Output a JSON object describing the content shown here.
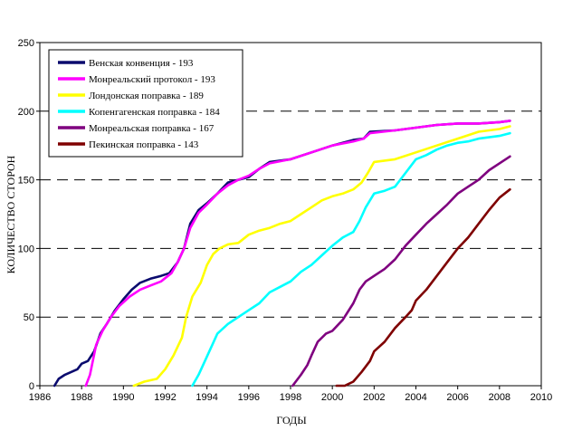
{
  "chart_data": {
    "type": "line",
    "title": "",
    "xlabel": "ГОДЫ",
    "ylabel": "КОЛИЧЕСТВО СТОРОН",
    "xlim": [
      1986,
      2010
    ],
    "ylim": [
      0,
      250
    ],
    "x_ticks": [
      1986,
      1988,
      1990,
      1992,
      1994,
      1996,
      1998,
      2000,
      2002,
      2004,
      2006,
      2008,
      2010
    ],
    "y_ticks": [
      0,
      50,
      100,
      150,
      200,
      250
    ],
    "grid": "dashed",
    "legend": "top-left",
    "series": [
      {
        "name": "Венская конвенция - 193",
        "color": "#0b0b6e",
        "points": [
          [
            1986.7,
            0
          ],
          [
            1986.9,
            5
          ],
          [
            1987.2,
            8
          ],
          [
            1987.8,
            12
          ],
          [
            1988.0,
            16
          ],
          [
            1988.3,
            18
          ],
          [
            1988.6,
            25
          ],
          [
            1988.9,
            38
          ],
          [
            1989.2,
            45
          ],
          [
            1989.6,
            55
          ],
          [
            1990.0,
            63
          ],
          [
            1990.4,
            70
          ],
          [
            1990.8,
            75
          ],
          [
            1991.3,
            78
          ],
          [
            1991.8,
            80
          ],
          [
            1992.2,
            82
          ],
          [
            1992.6,
            90
          ],
          [
            1992.9,
            100
          ],
          [
            1993.2,
            118
          ],
          [
            1993.6,
            128
          ],
          [
            1994.0,
            133
          ],
          [
            1994.5,
            140
          ],
          [
            1995.0,
            148
          ],
          [
            1995.5,
            150
          ],
          [
            1996.0,
            152
          ],
          [
            1996.5,
            158
          ],
          [
            1997.0,
            163
          ],
          [
            1998.0,
            165
          ],
          [
            1999.0,
            170
          ],
          [
            2000.0,
            175
          ],
          [
            2001.0,
            179
          ],
          [
            2001.5,
            180
          ],
          [
            2001.8,
            185
          ],
          [
            2003.0,
            186
          ],
          [
            2004.0,
            188
          ],
          [
            2005.0,
            190
          ],
          [
            2006.0,
            191
          ],
          [
            2007.0,
            191
          ],
          [
            2008.0,
            192
          ],
          [
            2008.5,
            193
          ]
        ]
      },
      {
        "name": "Монреальский протокол - 193",
        "color": "#ff00ff",
        "points": [
          [
            1988.2,
            0
          ],
          [
            1988.4,
            8
          ],
          [
            1988.7,
            30
          ],
          [
            1989.0,
            40
          ],
          [
            1989.4,
            50
          ],
          [
            1989.8,
            58
          ],
          [
            1990.3,
            65
          ],
          [
            1990.8,
            70
          ],
          [
            1991.3,
            73
          ],
          [
            1991.8,
            76
          ],
          [
            1992.3,
            82
          ],
          [
            1992.6,
            90
          ],
          [
            1992.9,
            100
          ],
          [
            1993.2,
            115
          ],
          [
            1993.6,
            126
          ],
          [
            1994.0,
            132
          ],
          [
            1994.5,
            140
          ],
          [
            1995.0,
            146
          ],
          [
            1995.5,
            150
          ],
          [
            1996.0,
            153
          ],
          [
            1996.5,
            158
          ],
          [
            1997.0,
            162
          ],
          [
            1998.0,
            165
          ],
          [
            1999.0,
            170
          ],
          [
            2000.0,
            175
          ],
          [
            2001.0,
            178
          ],
          [
            2001.5,
            180
          ],
          [
            2001.8,
            184
          ],
          [
            2003.0,
            186
          ],
          [
            2004.0,
            188
          ],
          [
            2005.0,
            190
          ],
          [
            2006.0,
            191
          ],
          [
            2007.0,
            191
          ],
          [
            2008.0,
            192
          ],
          [
            2008.5,
            193
          ]
        ]
      },
      {
        "name": "Лондонская поправка - 189",
        "color": "#ffff00",
        "points": [
          [
            1990.5,
            0
          ],
          [
            1991.0,
            3
          ],
          [
            1991.6,
            5
          ],
          [
            1992.0,
            12
          ],
          [
            1992.4,
            22
          ],
          [
            1992.8,
            35
          ],
          [
            1993.0,
            50
          ],
          [
            1993.3,
            65
          ],
          [
            1993.7,
            75
          ],
          [
            1994.0,
            88
          ],
          [
            1994.3,
            96
          ],
          [
            1994.6,
            100
          ],
          [
            1995.0,
            103
          ],
          [
            1995.5,
            104
          ],
          [
            1996.0,
            110
          ],
          [
            1996.5,
            113
          ],
          [
            1997.0,
            115
          ],
          [
            1997.5,
            118
          ],
          [
            1998.0,
            120
          ],
          [
            1998.5,
            125
          ],
          [
            1999.0,
            130
          ],
          [
            1999.5,
            135
          ],
          [
            2000.0,
            138
          ],
          [
            2000.5,
            140
          ],
          [
            2001.0,
            143
          ],
          [
            2001.4,
            148
          ],
          [
            2001.7,
            155
          ],
          [
            2002.0,
            163
          ],
          [
            2003.0,
            165
          ],
          [
            2004.0,
            170
          ],
          [
            2005.0,
            175
          ],
          [
            2006.0,
            180
          ],
          [
            2007.0,
            185
          ],
          [
            2008.0,
            187
          ],
          [
            2008.5,
            189
          ]
        ]
      },
      {
        "name": "Копенгагенская поправка - 184",
        "color": "#00ffff",
        "points": [
          [
            1993.3,
            0
          ],
          [
            1993.6,
            8
          ],
          [
            1993.9,
            18
          ],
          [
            1994.2,
            28
          ],
          [
            1994.5,
            38
          ],
          [
            1995.0,
            45
          ],
          [
            1995.5,
            50
          ],
          [
            1996.0,
            55
          ],
          [
            1996.5,
            60
          ],
          [
            1997.0,
            68
          ],
          [
            1997.5,
            72
          ],
          [
            1998.0,
            76
          ],
          [
            1998.5,
            83
          ],
          [
            1999.0,
            88
          ],
          [
            1999.5,
            95
          ],
          [
            2000.0,
            102
          ],
          [
            2000.5,
            108
          ],
          [
            2001.0,
            112
          ],
          [
            2001.3,
            120
          ],
          [
            2001.6,
            130
          ],
          [
            2002.0,
            140
          ],
          [
            2002.5,
            142
          ],
          [
            2003.0,
            145
          ],
          [
            2003.5,
            155
          ],
          [
            2004.0,
            165
          ],
          [
            2004.5,
            168
          ],
          [
            2005.0,
            172
          ],
          [
            2005.5,
            175
          ],
          [
            2006.0,
            177
          ],
          [
            2006.5,
            178
          ],
          [
            2007.0,
            180
          ],
          [
            2008.0,
            182
          ],
          [
            2008.5,
            184
          ]
        ]
      },
      {
        "name": "Монреальская поправка - 167",
        "color": "#7f007f",
        "points": [
          [
            1998.1,
            0
          ],
          [
            1998.5,
            8
          ],
          [
            1998.8,
            15
          ],
          [
            1999.0,
            22
          ],
          [
            1999.3,
            32
          ],
          [
            1999.7,
            38
          ],
          [
            2000.0,
            40
          ],
          [
            2000.5,
            48
          ],
          [
            2001.0,
            60
          ],
          [
            2001.3,
            70
          ],
          [
            2001.6,
            76
          ],
          [
            2002.0,
            80
          ],
          [
            2002.5,
            85
          ],
          [
            2003.0,
            92
          ],
          [
            2003.5,
            102
          ],
          [
            2004.0,
            110
          ],
          [
            2004.5,
            118
          ],
          [
            2005.0,
            125
          ],
          [
            2005.5,
            132
          ],
          [
            2006.0,
            140
          ],
          [
            2006.5,
            145
          ],
          [
            2007.0,
            150
          ],
          [
            2007.5,
            157
          ],
          [
            2008.0,
            162
          ],
          [
            2008.5,
            167
          ]
        ]
      },
      {
        "name": "Пекинская поправка - 143",
        "color": "#7f0000",
        "points": [
          [
            2000.2,
            0
          ],
          [
            2000.6,
            0
          ],
          [
            2001.0,
            3
          ],
          [
            2001.4,
            10
          ],
          [
            2001.8,
            18
          ],
          [
            2002.0,
            25
          ],
          [
            2002.5,
            32
          ],
          [
            2003.0,
            42
          ],
          [
            2003.5,
            50
          ],
          [
            2003.8,
            55
          ],
          [
            2004.0,
            62
          ],
          [
            2004.5,
            70
          ],
          [
            2005.0,
            80
          ],
          [
            2005.5,
            90
          ],
          [
            2006.0,
            100
          ],
          [
            2006.5,
            108
          ],
          [
            2007.0,
            118
          ],
          [
            2007.5,
            128
          ],
          [
            2008.0,
            137
          ],
          [
            2008.5,
            143
          ]
        ]
      }
    ]
  }
}
